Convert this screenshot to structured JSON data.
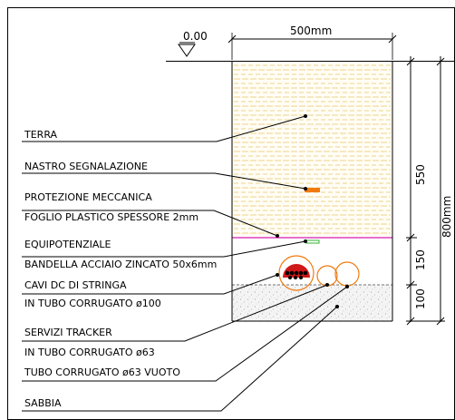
{
  "title_level": "0.00",
  "width_dim": "500mm",
  "dims": {
    "d550": "550",
    "d150": "150",
    "d100": "100",
    "d800": "800mm"
  },
  "labels": {
    "terra": "TERRA",
    "nastro": "NASTRO SEGNALAZIONE",
    "protezione": "PROTEZIONE MECCANICA",
    "foglio": "FOGLIO PLASTICO SPESSORE 2mm",
    "equipotenziale": "EQUIPOTENZIALE",
    "bandella": "BANDELLA ACCIAIO ZINCATO 50x6mm",
    "cavi_dc": "CAVI DC DI STRINGA",
    "tubo100": "IN TUBO CORRUGATO ø100",
    "servizi": "SERVIZI TRACKER",
    "tubo63": "IN TUBO CORRUGATO ø63",
    "tubo63_vuoto": "TUBO CORRUGATO ø63 VUOTO",
    "sabbia": "SABBIA"
  },
  "colors": {
    "earth_hatch": "#e8c46a",
    "marker_tape": "#f07a10",
    "plastic_sheet": "#e040c0",
    "ground_strip": "#30b030",
    "pipe_outline": "#f07a10",
    "cable_red": "#d01818"
  }
}
